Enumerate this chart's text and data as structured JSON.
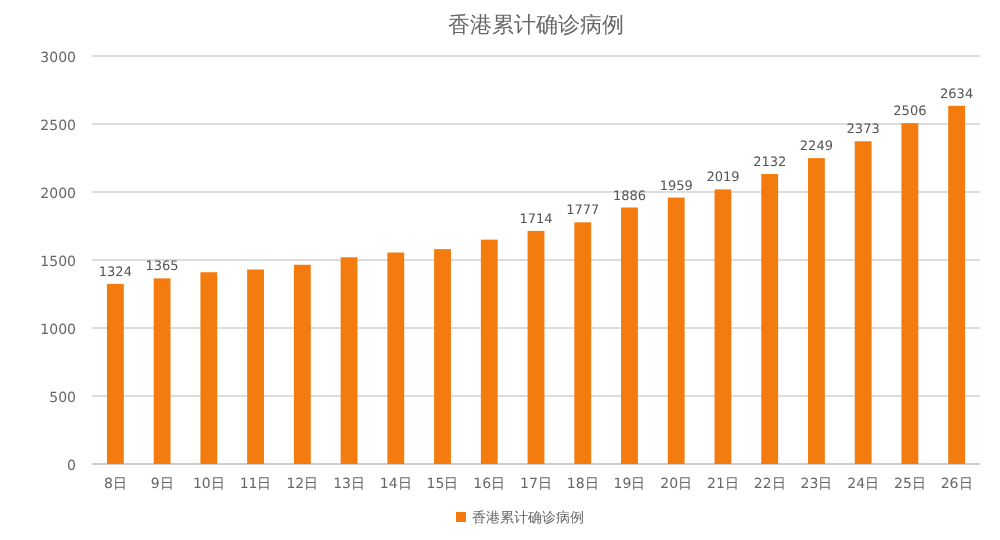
{
  "chart_data": {
    "type": "bar",
    "title": "香港累计确诊病例",
    "categories": [
      "8日",
      "9日",
      "10日",
      "11日",
      "12日",
      "13日",
      "14日",
      "15日",
      "16日",
      "17日",
      "18日",
      "19日",
      "20日",
      "21日",
      "22日",
      "23日",
      "24日",
      "25日",
      "26日"
    ],
    "series": [
      {
        "name": "香港累计确诊病例",
        "color": "#f47b0d",
        "values": [
          1324,
          1365,
          1410,
          1430,
          1465,
          1520,
          1555,
          1580,
          1650,
          1714,
          1777,
          1886,
          1959,
          2019,
          2132,
          2249,
          2373,
          2506,
          2634
        ],
        "value_labels": [
          "1324",
          "1365",
          null,
          null,
          null,
          null,
          null,
          null,
          null,
          "1714",
          "1777",
          "1886",
          "1959",
          "2019",
          "2132",
          "2249",
          "2373",
          "2506",
          "2634"
        ]
      }
    ],
    "ylim": [
      0,
      3000
    ],
    "yticks": [
      0,
      500,
      1000,
      1500,
      2000,
      2500,
      3000
    ],
    "grid": "y",
    "legend": "bottom"
  }
}
